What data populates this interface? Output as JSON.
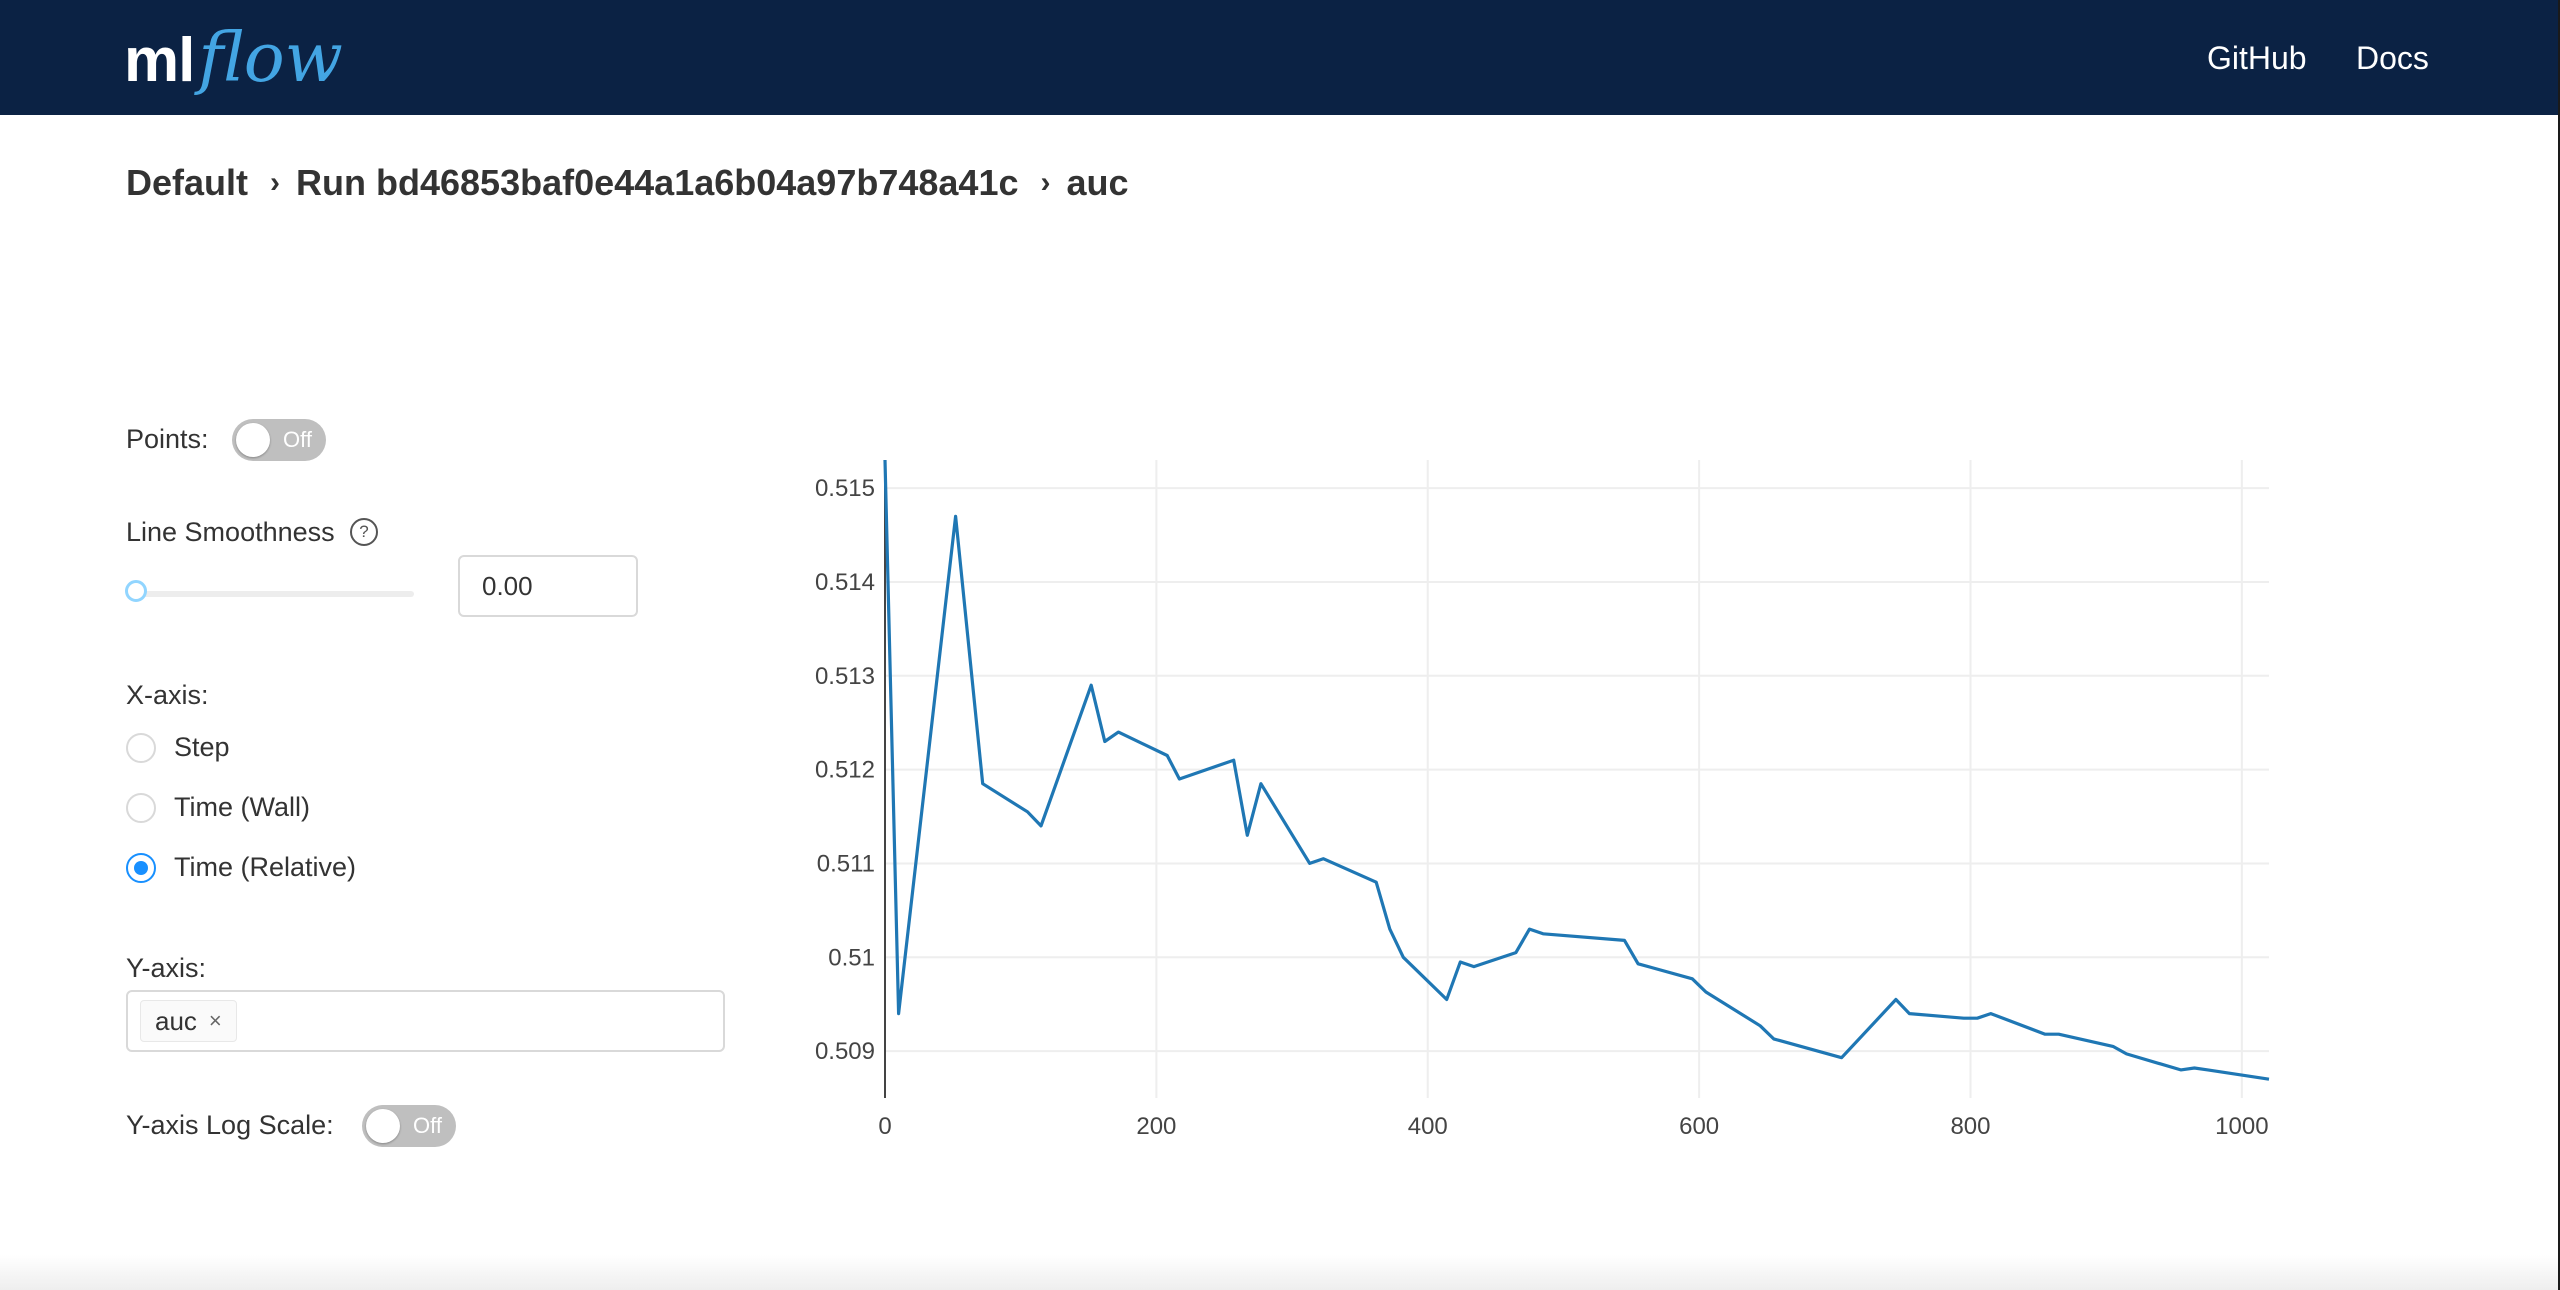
{
  "header": {
    "logo": {
      "ml": "ml",
      "flow": "flow"
    },
    "nav": {
      "github": "GitHub",
      "docs": "Docs"
    },
    "colors": {
      "bar": "#0b2244",
      "logo_accent": "#43a5e3"
    }
  },
  "breadcrumb": {
    "experiment": "Default",
    "run": "Run bd46853baf0e44a1a6b04a97b748a41c",
    "metric": "auc"
  },
  "controls": {
    "points": {
      "label": "Points:",
      "state": "Off"
    },
    "smoothness": {
      "label": "Line Smoothness",
      "value": "0.00",
      "slider_level": 0,
      "help_icon": "question-circle-icon"
    },
    "xaxis": {
      "label": "X-axis:",
      "options": [
        "Step",
        "Time (Wall)",
        "Time (Relative)"
      ],
      "selected": "Time (Relative)"
    },
    "yaxis": {
      "label": "Y-axis:",
      "tag": "auc",
      "tag_close": "×"
    },
    "logscale": {
      "label": "Y-axis Log Scale:",
      "state": "Off"
    },
    "accent": "#1890ff"
  },
  "chart_data": {
    "type": "line",
    "title": "",
    "xlabel": "",
    "ylabel": "",
    "xlim": [
      0,
      1020
    ],
    "ylim": [
      0.5085,
      0.5153
    ],
    "xticks": [
      0,
      200,
      400,
      600,
      800,
      1000
    ],
    "yticks": [
      0.509,
      0.51,
      0.511,
      0.512,
      0.513,
      0.514,
      0.515
    ],
    "ytick_labels": [
      "0.509",
      "0.51",
      "0.511",
      "0.512",
      "0.513",
      "0.514",
      "0.515"
    ],
    "grid": true,
    "line_color": "#1f77b4",
    "series": [
      {
        "x": [
          0,
          10,
          52,
          72,
          105,
          115,
          152,
          162,
          172,
          208,
          217,
          257,
          267,
          277,
          313,
          323,
          362,
          372,
          382,
          414,
          424,
          434,
          465,
          475,
          485,
          545,
          555,
          595,
          605,
          645,
          655,
          705,
          745,
          755,
          795,
          805,
          815,
          855,
          865,
          905,
          915,
          955,
          965,
          975,
          1020
        ],
        "y": [
          0.5153,
          0.5094,
          0.5147,
          0.51185,
          0.51155,
          0.5114,
          0.5129,
          0.5123,
          0.5124,
          0.51215,
          0.5119,
          0.5121,
          0.5113,
          0.51185,
          0.511,
          0.51105,
          0.5108,
          0.5103,
          0.51,
          0.50955,
          0.50995,
          0.5099,
          0.51005,
          0.5103,
          0.51025,
          0.51018,
          0.50993,
          0.50977,
          0.50963,
          0.50927,
          0.50913,
          0.50893,
          0.50955,
          0.5094,
          0.50935,
          0.50935,
          0.5094,
          0.50918,
          0.50918,
          0.50905,
          0.50897,
          0.5088,
          0.50882,
          0.5088,
          0.5087
        ]
      }
    ]
  }
}
